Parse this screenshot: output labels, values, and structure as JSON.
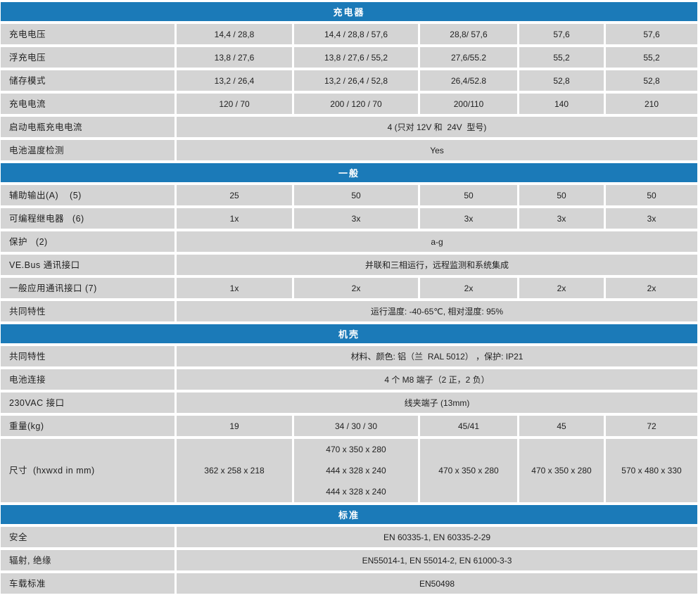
{
  "colors": {
    "header_bg": "#1b7ab8",
    "header_text": "#ffffff",
    "cell_bg": "#d4d4d4",
    "text": "#1f1f1f"
  },
  "sections": [
    {
      "title": "充电器",
      "rows": [
        {
          "label": "充电电压",
          "cells": [
            "14,4 / 28,8",
            "14,4 / 28,8 / 57,6",
            "28,8/ 57,6",
            "57,6",
            "57,6"
          ]
        },
        {
          "label": "浮充电压",
          "cells": [
            "13,8 / 27,6",
            "13,8 / 27,6 / 55,2",
            "27,6/55.2",
            "55,2",
            "55,2"
          ]
        },
        {
          "label": "储存模式",
          "cells": [
            "13,2 / 26,4",
            "13,2 / 26,4 / 52,8",
            "26,4/52.8",
            "52,8",
            "52,8"
          ]
        },
        {
          "label": "充电电流",
          "cells": [
            "120 / 70",
            "200 / 120 / 70",
            "200/110",
            "140",
            "210"
          ]
        },
        {
          "label": "启动电瓶充电电流",
          "span": "4 (只对 12V 和  24V  型号)"
        },
        {
          "label": "电池温度检测",
          "span": "Yes"
        }
      ]
    },
    {
      "title": "一般",
      "rows": [
        {
          "label": "辅助输出(A)    (5)",
          "cells": [
            "25",
            "50",
            "50",
            "50",
            "50"
          ]
        },
        {
          "label": "可编程继电器   (6)",
          "cells": [
            "1x",
            "3x",
            "3x",
            "3x",
            "3x"
          ]
        },
        {
          "label": "保护   (2)",
          "span": "a-g"
        },
        {
          "label": "VE.Bus 通讯接口",
          "span": "并联和三相运行，远程监测和系统集成"
        },
        {
          "label": "一般应用通讯接口 (7)",
          "cells": [
            "1x",
            "2x",
            "2x",
            "2x",
            "2x"
          ]
        },
        {
          "label": "共同特性",
          "span": "运行温度: -40-65℃, 相对湿度: 95%"
        }
      ]
    },
    {
      "title": "机壳",
      "rows": [
        {
          "label": "共同特性",
          "span": "材料、颜色: 铝（兰  RAL 5012） ，保护: IP21"
        },
        {
          "label": "电池连接",
          "span": "4 个 M8 端子（2 正，2 负）"
        },
        {
          "label": "230VAC 接口",
          "span": "线夹端子 (13mm)"
        },
        {
          "label": "重量(kg)",
          "cells": [
            "19",
            "34 / 30 / 30",
            "45/41",
            "45",
            "72"
          ]
        },
        {
          "label": "尺寸  (hxwxd in mm)",
          "cells": [
            "362 x 258 x 218",
            "470 x 350 x 280\n444 x 328 x 240\n444 x 328 x 240",
            "470 x 350 x 280",
            "470 x 350 x 280",
            "570 x 480 x 330"
          ]
        }
      ]
    },
    {
      "title": "标准",
      "rows": [
        {
          "label": "安全",
          "span": "EN 60335-1, EN 60335-2-29"
        },
        {
          "label": "辐射, 绝缘",
          "span": "EN55014-1, EN 55014-2, EN 61000-3-3"
        },
        {
          "label": "车载标准",
          "span": "EN50498"
        }
      ]
    }
  ]
}
